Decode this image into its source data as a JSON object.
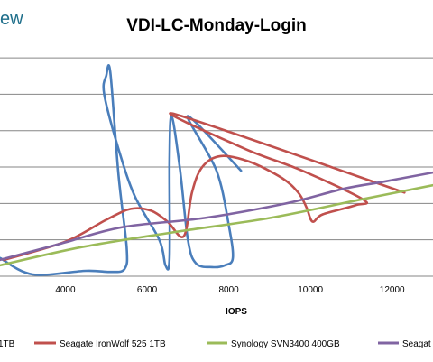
{
  "brand": {
    "text": "ew"
  },
  "chart_data": {
    "type": "line",
    "title": "VDI-LC-Monday-Login",
    "xlabel": "IOPS",
    "ylabel": "",
    "xlim": [
      2400,
      13000
    ],
    "ylim": [
      0,
      6.2
    ],
    "x_ticks": [
      4000,
      6000,
      8000,
      10000,
      12000
    ],
    "x_tick_labels": [
      "4000",
      "6000",
      "8000",
      "10000",
      "12000"
    ],
    "grid_y": [
      1,
      2,
      3,
      4,
      5,
      6
    ],
    "grid": true,
    "legend_position": "bottom",
    "legend_labels": [
      "1TB",
      "Seagate IronWolf 525 1TB",
      "Synology SVN3400 400GB",
      "Seagat"
    ],
    "series": [
      {
        "name": "1TB",
        "color": "#4a7ebb",
        "points": [
          [
            2400,
            0.5
          ],
          [
            3200,
            0.05
          ],
          [
            4500,
            0.15
          ],
          [
            5100,
            0.12
          ],
          [
            5450,
            0.2
          ],
          [
            5500,
            0.8
          ],
          [
            5300,
            2.8
          ],
          [
            5100,
            5.6
          ],
          [
            5000,
            5.5
          ],
          [
            4950,
            5.0
          ],
          [
            5300,
            3.5
          ],
          [
            5700,
            2.2
          ],
          [
            6300,
            1.0
          ],
          [
            6450,
            0.3
          ],
          [
            6550,
            0.5
          ],
          [
            6550,
            3.2
          ],
          [
            6600,
            4.4
          ],
          [
            6800,
            3.0
          ],
          [
            7000,
            1.0
          ],
          [
            7200,
            0.35
          ],
          [
            7600,
            0.25
          ],
          [
            7900,
            0.3
          ],
          [
            8100,
            0.5
          ],
          [
            8000,
            1.4
          ],
          [
            7700,
            2.9
          ],
          [
            7000,
            4.4
          ],
          [
            8300,
            2.9
          ]
        ]
      },
      {
        "name": "Seagate IronWolf 525 1TB",
        "color": "#c0504d",
        "points": [
          [
            2500,
            0.45
          ],
          [
            4000,
            0.95
          ],
          [
            5000,
            1.55
          ],
          [
            5600,
            1.85
          ],
          [
            6100,
            1.8
          ],
          [
            6500,
            1.5
          ],
          [
            6900,
            1.1
          ],
          [
            7100,
            2.3
          ],
          [
            7350,
            3.0
          ],
          [
            7800,
            3.3
          ],
          [
            8500,
            3.15
          ],
          [
            9300,
            2.7
          ],
          [
            9700,
            2.3
          ],
          [
            9900,
            1.9
          ],
          [
            10050,
            1.5
          ],
          [
            10300,
            1.7
          ],
          [
            11100,
            1.95
          ],
          [
            11300,
            2.1
          ],
          [
            9800,
            2.9
          ],
          [
            8400,
            3.5
          ],
          [
            6700,
            4.45
          ],
          [
            12300,
            2.3
          ]
        ]
      },
      {
        "name": "Synology SVN3400 400GB",
        "color": "#9bbb59",
        "points": [
          [
            2400,
            0.3
          ],
          [
            4400,
            0.8
          ],
          [
            6600,
            1.2
          ],
          [
            9000,
            1.6
          ],
          [
            11200,
            2.1
          ],
          [
            13000,
            2.5
          ]
        ]
      },
      {
        "name": "Seagat",
        "color": "#8064a2",
        "points": [
          [
            2400,
            0.45
          ],
          [
            3900,
            0.9
          ],
          [
            5400,
            1.35
          ],
          [
            7400,
            1.6
          ],
          [
            9400,
            2.0
          ],
          [
            10800,
            2.4
          ],
          [
            11800,
            2.6
          ],
          [
            13000,
            2.85
          ]
        ]
      }
    ]
  }
}
